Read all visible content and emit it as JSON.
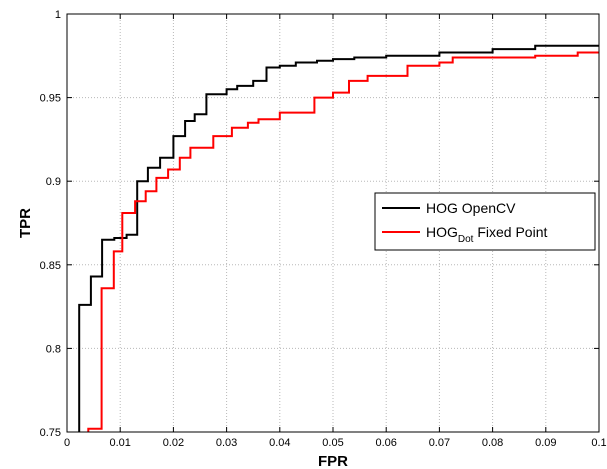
{
  "chart_data": {
    "type": "line",
    "title": "",
    "xlabel": "FPR",
    "ylabel": "TPR",
    "xlim": [
      0,
      0.1
    ],
    "ylim": [
      0.75,
      1
    ],
    "xticks": [
      0,
      0.01,
      0.02,
      0.03,
      0.04,
      0.05,
      0.06,
      0.07,
      0.08,
      0.09,
      0.1
    ],
    "xtick_labels": [
      "0",
      "0.01",
      "0.02",
      "0.03",
      "0.04",
      "0.05",
      "0.06",
      "0.07",
      "0.08",
      "0.09",
      "0.1"
    ],
    "yticks": [
      0.75,
      0.8,
      0.85,
      0.9,
      0.95,
      1
    ],
    "ytick_labels": [
      "0.75",
      "0.8",
      "0.85",
      "0.9",
      "0.95",
      "1"
    ],
    "grid": true,
    "legend_position": "right",
    "series": [
      {
        "name": "HOG OpenCV",
        "label_parts": {
          "main": "HOG OpenCV",
          "sub": "",
          "rest": ""
        },
        "color": "#000000",
        "x": [
          0.0023,
          0.0023,
          0.0045,
          0.0045,
          0.0066,
          0.0066,
          0.0089,
          0.0089,
          0.0112,
          0.0112,
          0.0132,
          0.0132,
          0.0152,
          0.0152,
          0.0175,
          0.0175,
          0.02,
          0.02,
          0.0222,
          0.0222,
          0.024,
          0.024,
          0.0262,
          0.0262,
          0.03,
          0.03,
          0.032,
          0.032,
          0.035,
          0.035,
          0.0375,
          0.0375,
          0.04,
          0.04,
          0.043,
          0.043,
          0.047,
          0.047,
          0.05,
          0.05,
          0.054,
          0.054,
          0.06,
          0.06,
          0.07,
          0.07,
          0.08,
          0.08,
          0.088,
          0.088,
          0.1
        ],
        "y": [
          0.75,
          0.826,
          0.826,
          0.843,
          0.843,
          0.865,
          0.865,
          0.866,
          0.866,
          0.868,
          0.868,
          0.9,
          0.9,
          0.908,
          0.908,
          0.914,
          0.914,
          0.927,
          0.927,
          0.936,
          0.936,
          0.94,
          0.94,
          0.952,
          0.952,
          0.955,
          0.955,
          0.957,
          0.957,
          0.96,
          0.96,
          0.968,
          0.968,
          0.969,
          0.969,
          0.971,
          0.971,
          0.972,
          0.972,
          0.973,
          0.973,
          0.974,
          0.974,
          0.975,
          0.975,
          0.977,
          0.977,
          0.979,
          0.979,
          0.981,
          0.981
        ]
      },
      {
        "name": "HOGDot Fixed Point",
        "label_parts": {
          "main": "HOG",
          "sub": "Dot",
          "rest": " Fixed Point"
        },
        "color": "#ff0000",
        "x": [
          0.004,
          0.004,
          0.0065,
          0.0065,
          0.0088,
          0.0088,
          0.0104,
          0.0104,
          0.0128,
          0.0128,
          0.0148,
          0.0148,
          0.0168,
          0.0168,
          0.019,
          0.019,
          0.0212,
          0.0212,
          0.0232,
          0.0232,
          0.0275,
          0.0275,
          0.031,
          0.031,
          0.034,
          0.034,
          0.036,
          0.036,
          0.04,
          0.04,
          0.0465,
          0.0465,
          0.05,
          0.05,
          0.053,
          0.053,
          0.0565,
          0.0565,
          0.064,
          0.064,
          0.07,
          0.07,
          0.0725,
          0.0725,
          0.088,
          0.088,
          0.096,
          0.096,
          0.1
        ],
        "y": [
          0.75,
          0.752,
          0.752,
          0.836,
          0.836,
          0.858,
          0.858,
          0.881,
          0.881,
          0.888,
          0.888,
          0.894,
          0.894,
          0.902,
          0.902,
          0.907,
          0.907,
          0.914,
          0.914,
          0.92,
          0.92,
          0.927,
          0.927,
          0.932,
          0.932,
          0.935,
          0.935,
          0.937,
          0.937,
          0.941,
          0.941,
          0.95,
          0.95,
          0.953,
          0.953,
          0.96,
          0.96,
          0.963,
          0.963,
          0.969,
          0.969,
          0.971,
          0.971,
          0.974,
          0.974,
          0.975,
          0.975,
          0.977,
          0.977
        ]
      }
    ]
  }
}
